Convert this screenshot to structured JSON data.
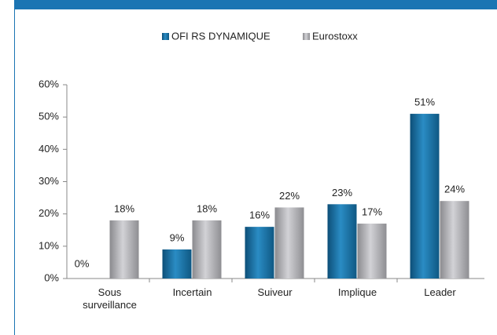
{
  "chart_data": {
    "type": "bar",
    "categories": [
      "Sous surveillance",
      "Incertain",
      "Suiveur",
      "Implique",
      "Leader"
    ],
    "series": [
      {
        "name": "OFI RS DYNAMIQUE",
        "color": "#1a6fa0",
        "values": [
          0,
          9,
          16,
          23,
          51
        ],
        "value_labels": [
          "0%",
          "9%",
          "16%",
          "23%",
          "51%"
        ]
      },
      {
        "name": "Eurostoxx",
        "color": "#a9a9ad",
        "values": [
          18,
          18,
          22,
          17,
          24
        ],
        "value_labels": [
          "18%",
          "18%",
          "22%",
          "17%",
          "24%"
        ]
      }
    ],
    "ylim": [
      0,
      60
    ],
    "yticks": [
      {
        "value": 0,
        "label": "0%"
      },
      {
        "value": 10,
        "label": "10%"
      },
      {
        "value": 20,
        "label": "20%"
      },
      {
        "value": 30,
        "label": "30%"
      },
      {
        "value": 40,
        "label": "40%"
      },
      {
        "value": 50,
        "label": "50%"
      },
      {
        "value": 60,
        "label": "60%"
      }
    ],
    "legend": "top"
  }
}
